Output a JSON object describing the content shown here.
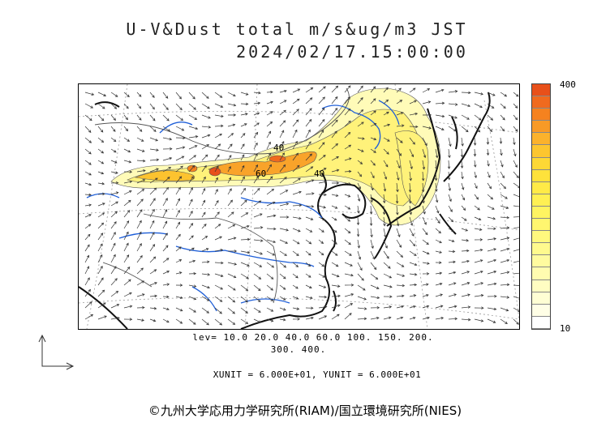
{
  "title": {
    "line1": "U-V&Dust total m/s&ug/m3 JST",
    "line2": "2024/02/17.15:00:00"
  },
  "colorbar": {
    "max_label": "400",
    "min_label": "10",
    "colors": [
      "#e8501a",
      "#f06a1e",
      "#f5821f",
      "#f89a26",
      "#fbb22c",
      "#fcc62f",
      "#fdd835",
      "#fee23b",
      "#ffea47",
      "#fff053",
      "#fff461",
      "#fff66f",
      "#fff87e",
      "#fffa8e",
      "#fffb9f",
      "#fffcb0",
      "#fffdc2",
      "#fffed4",
      "#fffee6",
      "#ffffff"
    ]
  },
  "contour_labels": [
    "40",
    "60",
    "40"
  ],
  "levels": {
    "line1": "lev= 10.0 20.0 40.0 60.0 100. 150. 200.",
    "line2": "300. 400."
  },
  "units": "XUNIT = 6.000E+01, YUNIT = 6.000E+01",
  "copyright": "©九州大学応用力学研究所(RIAM)/国立環境研究所(NIES)",
  "colors": {
    "coast": "#111111",
    "river": "#1f5fd8",
    "border": "#555555",
    "vector": "#333333"
  }
}
